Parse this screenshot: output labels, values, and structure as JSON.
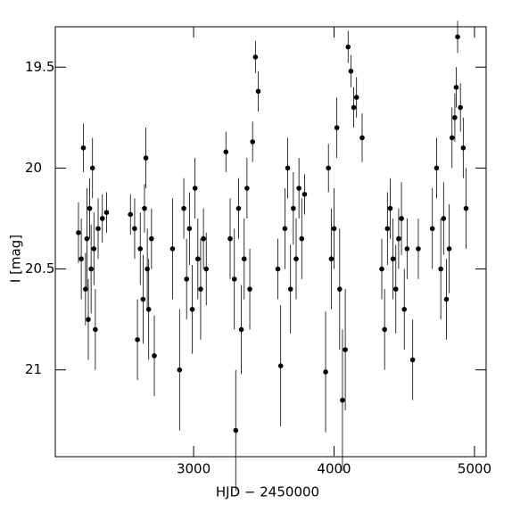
{
  "chart_data": {
    "type": "scatter",
    "x_label": "HJD − 2450000",
    "y_label": "I [mag]",
    "xlim": [
      2015,
      5083
    ],
    "ylim": [
      21.43,
      19.3
    ],
    "xticks": [
      3000,
      4000,
      5000
    ],
    "yticks": [
      19.5,
      20,
      20.5,
      21
    ],
    "series": [
      {
        "color": "#000000",
        "x": [
          2180,
          2200,
          2215,
          2230,
          2240,
          2250,
          2260,
          2270,
          2280,
          2290,
          2300,
          2320,
          2350,
          2380,
          2550,
          2580,
          2600,
          2620,
          2640,
          2650,
          2660,
          2670,
          2680,
          2700,
          2720,
          2850,
          2900,
          2930,
          2950,
          2970,
          2990,
          3010,
          3030,
          3050,
          3070,
          3090,
          3230,
          3260,
          3290,
          3300,
          3320,
          3340,
          3360,
          3380,
          3400,
          3420,
          3440,
          3460,
          3600,
          3620,
          3650,
          3670,
          3690,
          3710,
          3730,
          3750,
          3770,
          3790,
          3940,
          3960,
          3980,
          4000,
          4020,
          4040,
          4060,
          4080,
          4100,
          4120,
          4140,
          4160,
          4200,
          4340,
          4360,
          4380,
          4400,
          4420,
          4440,
          4460,
          4480,
          4500,
          4520,
          4560,
          4600,
          4700,
          4730,
          4760,
          4780,
          4800,
          4820,
          4840,
          4860,
          4870,
          4880,
          4900,
          4920,
          4940
        ],
        "values": [
          20.32,
          20.45,
          19.9,
          20.6,
          20.35,
          20.75,
          20.2,
          20.5,
          20.0,
          20.4,
          20.8,
          20.3,
          20.25,
          20.22,
          20.23,
          20.3,
          20.85,
          20.4,
          20.65,
          20.2,
          19.95,
          20.5,
          20.7,
          20.35,
          20.93,
          20.4,
          21.0,
          20.2,
          20.55,
          20.3,
          20.7,
          20.1,
          20.45,
          20.6,
          20.35,
          20.5,
          19.92,
          20.35,
          20.55,
          21.3,
          20.2,
          20.8,
          20.45,
          20.1,
          20.6,
          19.87,
          19.45,
          19.62,
          20.5,
          20.98,
          20.3,
          20.0,
          20.6,
          20.2,
          20.45,
          20.1,
          20.35,
          20.13,
          21.01,
          20.0,
          20.45,
          20.3,
          19.8,
          20.6,
          21.15,
          20.9,
          19.4,
          19.52,
          19.7,
          19.65,
          19.85,
          20.5,
          20.8,
          20.3,
          20.2,
          20.45,
          20.6,
          20.35,
          20.25,
          20.7,
          20.4,
          20.95,
          20.4,
          20.3,
          20.0,
          20.5,
          20.25,
          20.65,
          20.4,
          19.85,
          19.75,
          19.6,
          19.35,
          19.7,
          19.9,
          20.2
        ],
        "errors": [
          0.15,
          0.2,
          0.12,
          0.18,
          0.25,
          0.2,
          0.15,
          0.22,
          0.15,
          0.18,
          0.2,
          0.15,
          0.12,
          0.1,
          0.1,
          0.15,
          0.2,
          0.18,
          0.22,
          0.12,
          0.15,
          0.2,
          0.25,
          0.15,
          0.2,
          0.25,
          0.3,
          0.15,
          0.2,
          0.18,
          0.22,
          0.15,
          0.2,
          0.25,
          0.15,
          0.18,
          0.1,
          0.2,
          0.25,
          0.3,
          0.15,
          0.22,
          0.2,
          0.15,
          0.2,
          0.1,
          0.08,
          0.1,
          0.15,
          0.3,
          0.2,
          0.15,
          0.22,
          0.18,
          0.2,
          0.15,
          0.2,
          0.1,
          0.3,
          0.12,
          0.25,
          0.2,
          0.15,
          0.3,
          0.35,
          0.3,
          0.08,
          0.08,
          0.1,
          0.1,
          0.12,
          0.15,
          0.2,
          0.18,
          0.15,
          0.2,
          0.22,
          0.15,
          0.18,
          0.2,
          0.15,
          0.2,
          0.15,
          0.2,
          0.15,
          0.25,
          0.18,
          0.2,
          0.22,
          0.15,
          0.12,
          0.1,
          0.08,
          0.12,
          0.15,
          0.2
        ]
      }
    ]
  }
}
